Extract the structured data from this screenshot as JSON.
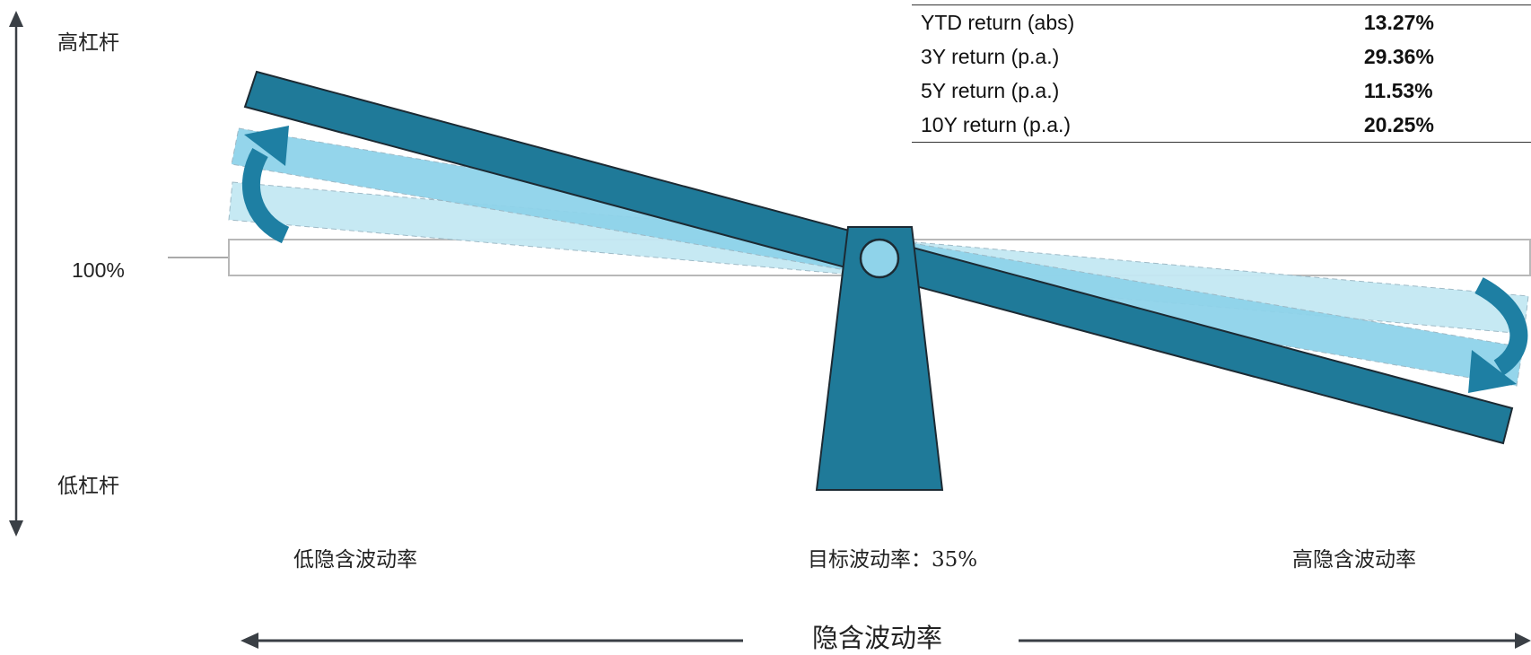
{
  "axis": {
    "high_leverage": "高杠杆",
    "low_leverage": "低杠杆",
    "hundred_percent": "100%",
    "implied_vol_title": "隐含波动率"
  },
  "labels": {
    "low_implied_vol": "低隐含波动率",
    "target_vol": "目标波动率：35%",
    "high_implied_vol": "高隐含波动率"
  },
  "returns_table": [
    {
      "label": "YTD return (abs)",
      "value": "13.27%"
    },
    {
      "label": "3Y return (p.a.)",
      "value": "29.36%"
    },
    {
      "label": "5Y return (p.a.)",
      "value": "11.53%"
    },
    {
      "label": "10Y return (p.a.)",
      "value": "20.25%"
    }
  ],
  "colors": {
    "beam": "#1f7a99",
    "beam_light": "#8fd3ea",
    "beam_lighter": "#c4e8f3",
    "arrow": "#1e7fa3",
    "axis": "#3a3f45"
  }
}
